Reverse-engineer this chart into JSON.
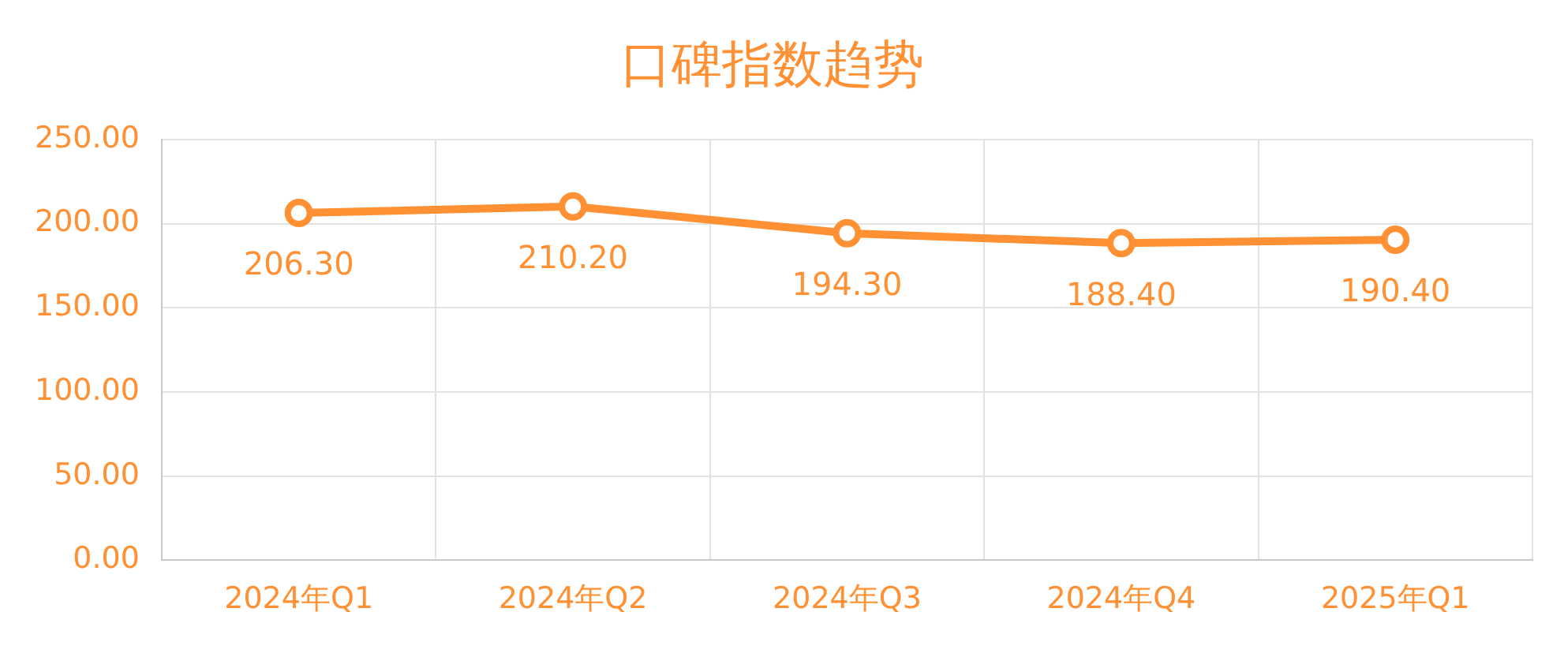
{
  "chart_data": {
    "type": "line",
    "title": "口碑指数趋势",
    "categories": [
      "2024年Q1",
      "2024年Q2",
      "2024年Q3",
      "2024年Q4",
      "2025年Q1"
    ],
    "series": [
      {
        "color": "#ff9033",
        "values": [
          206.3,
          210.2,
          194.3,
          188.4,
          190.4
        ],
        "value_labels": [
          "206.30",
          "210.20",
          "194.30",
          "188.40",
          "190.40"
        ]
      }
    ],
    "ylim": [
      0,
      250
    ],
    "yticks": [
      {
        "value": 0,
        "label": "0.00"
      },
      {
        "value": 50,
        "label": "50.00"
      },
      {
        "value": 100,
        "label": "100.00"
      },
      {
        "value": 150,
        "label": "150.00"
      },
      {
        "value": 200,
        "label": "200.00"
      },
      {
        "value": 250,
        "label": "250.00"
      }
    ],
    "grid": true,
    "legend": false,
    "marker": "circle",
    "line_style": "solid"
  }
}
